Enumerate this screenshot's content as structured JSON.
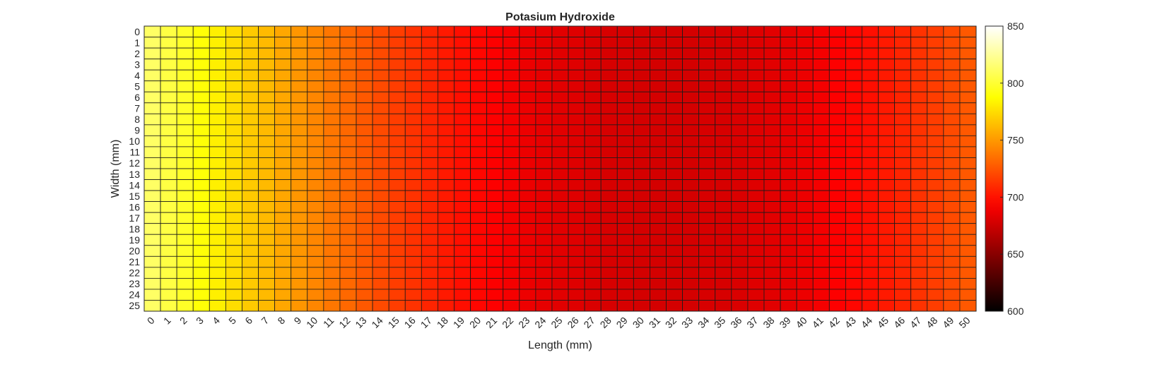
{
  "chart_data": {
    "type": "heatmap",
    "title": "Potasium Hydroxide",
    "xlabel": "Length (mm)",
    "ylabel": "Width (mm)",
    "x": [
      0,
      1,
      2,
      3,
      4,
      5,
      6,
      7,
      8,
      9,
      10,
      11,
      12,
      13,
      14,
      15,
      16,
      17,
      18,
      19,
      20,
      21,
      22,
      23,
      24,
      25,
      26,
      27,
      28,
      29,
      30,
      31,
      32,
      33,
      34,
      35,
      36,
      37,
      38,
      39,
      40,
      41,
      42,
      43,
      44,
      45,
      46,
      47,
      48,
      49,
      50
    ],
    "y": [
      0,
      1,
      2,
      3,
      4,
      5,
      6,
      7,
      8,
      9,
      10,
      11,
      12,
      13,
      14,
      15,
      16,
      17,
      18,
      19,
      20,
      21,
      22,
      23,
      24,
      25
    ],
    "row_values": [
      812,
      804,
      797,
      789,
      782,
      775,
      768,
      762,
      755,
      749,
      743,
      737,
      732,
      726,
      721,
      716,
      712,
      707,
      703,
      699,
      696,
      693,
      690,
      687,
      685,
      683,
      682,
      680,
      679,
      679,
      678,
      678,
      678,
      678,
      679,
      679,
      680,
      682,
      683,
      685,
      687,
      690,
      693,
      696,
      699,
      703,
      707,
      712,
      716,
      721,
      726
    ],
    "rows_identical": true,
    "colormap": "hot",
    "colorbar": {
      "range": [
        600,
        850
      ],
      "ticks": [
        600,
        650,
        700,
        750,
        800,
        850
      ]
    },
    "grid": true
  }
}
